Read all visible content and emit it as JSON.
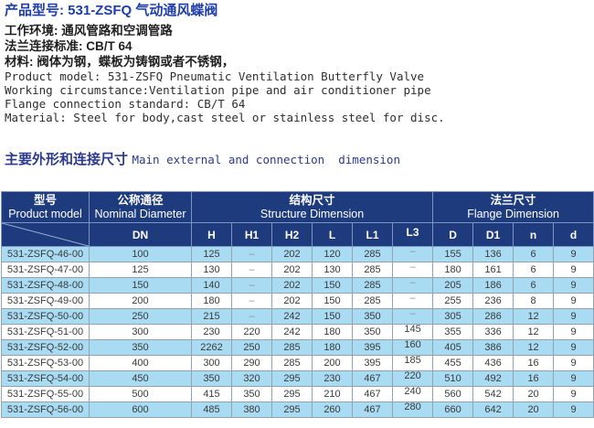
{
  "header": {
    "title_cn": "产品型号: 531-ZSFQ 气动通风蝶阀",
    "info_cn": [
      "工作环境: 通风管路和空调管路",
      "法兰连接标准: CB/T 64",
      "材料: 阀体为钢，蝶板为铸钢或者不锈钢，"
    ],
    "info_en": [
      "Product model: 531-ZSFQ Pneumatic Ventilation Butterfly Valve",
      "Working circumstance:Ventilation pipe and air conditioner pipe",
      "Flange connection standard: CB/T 64",
      "Material: Steel for body,cast steel or stainless steel for disc."
    ]
  },
  "section": {
    "heading_cn": "主要外形和连接尺寸",
    "heading_en": "Main external and connection  dimension"
  },
  "table": {
    "header_groups": [
      {
        "cn": "型号",
        "en": "Product model"
      },
      {
        "cn": "公称通径",
        "en": "Nominal Diameter"
      },
      {
        "cn": "结构尺寸",
        "en": "Structure Dimension"
      },
      {
        "cn": "法兰尺寸",
        "en": "Flange Dimension"
      }
    ],
    "sub_headers": [
      "DN",
      "H",
      "H1",
      "H2",
      "L",
      "L1",
      "L3",
      "D",
      "D1",
      "n",
      "d"
    ],
    "rows": [
      {
        "model": "531-ZSFQ-46-00",
        "values": [
          "100",
          "125",
          "–",
          "202",
          "120",
          "285",
          "–",
          "155",
          "136",
          "6",
          "9"
        ]
      },
      {
        "model": "531-ZSFQ-47-00",
        "values": [
          "125",
          "130",
          "–",
          "202",
          "130",
          "285",
          "–",
          "180",
          "161",
          "6",
          "9"
        ]
      },
      {
        "model": "531-ZSFQ-48-00",
        "values": [
          "150",
          "140",
          "–",
          "202",
          "150",
          "285",
          "–",
          "205",
          "186",
          "6",
          "9"
        ]
      },
      {
        "model": "531-ZSFQ-49-00",
        "values": [
          "200",
          "180",
          "–",
          "202",
          "150",
          "285",
          "–",
          "255",
          "236",
          "8",
          "9"
        ]
      },
      {
        "model": "531-ZSFQ-50-00",
        "values": [
          "250",
          "215",
          "–",
          "242",
          "150",
          "350",
          "–",
          "305",
          "286",
          "12",
          "9"
        ]
      },
      {
        "model": "531-ZSFQ-51-00",
        "values": [
          "300",
          "230",
          "220",
          "242",
          "180",
          "350",
          "145",
          "355",
          "336",
          "12",
          "9"
        ]
      },
      {
        "model": "531-ZSFQ-52-00",
        "values": [
          "350",
          "2262",
          "250",
          "285",
          "180",
          "395",
          "160",
          "405",
          "386",
          "12",
          "9"
        ]
      },
      {
        "model": "531-ZSFQ-53-00",
        "values": [
          "400",
          "300",
          "290",
          "285",
          "200",
          "395",
          "185",
          "455",
          "436",
          "16",
          "9"
        ]
      },
      {
        "model": "531-ZSFQ-54-00",
        "values": [
          "450",
          "350",
          "320",
          "295",
          "230",
          "467",
          "220",
          "510",
          "492",
          "16",
          "9"
        ]
      },
      {
        "model": "531-ZSFQ-55-00",
        "values": [
          "500",
          "415",
          "350",
          "295",
          "210",
          "467",
          "240",
          "560",
          "542",
          "20",
          "9"
        ]
      },
      {
        "model": "531-ZSFQ-56-00",
        "values": [
          "600",
          "485",
          "380",
          "295",
          "260",
          "467",
          "280",
          "660",
          "642",
          "20",
          "9"
        ]
      }
    ]
  },
  "colors": {
    "title_blue": "#1d3ea9",
    "heading_navy": "#2b3a8f",
    "table_header_bg": "#1e3b7e",
    "row_alt_blue": "#a9dbf2",
    "body_text": "#3a3a3a"
  }
}
